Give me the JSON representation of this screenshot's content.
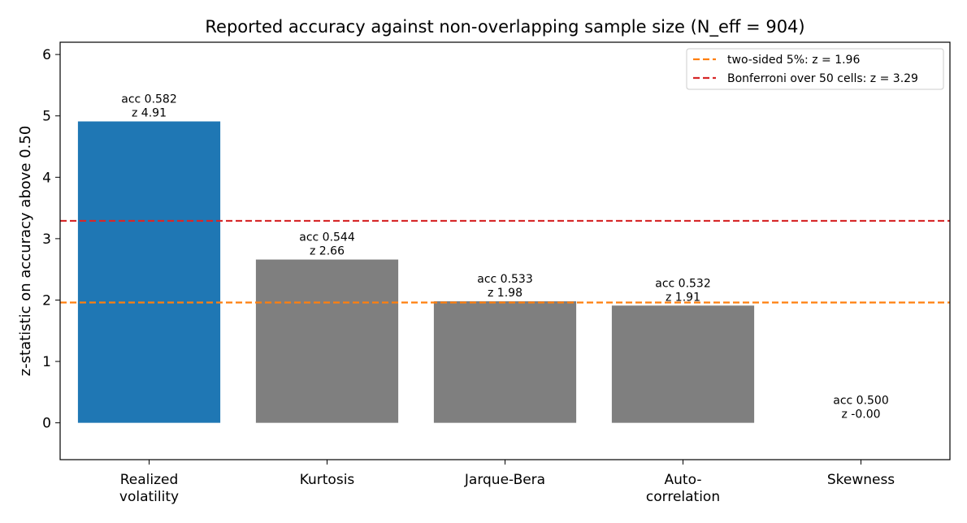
{
  "chart_data": {
    "type": "bar",
    "title": "Reported accuracy against non-overlapping sample size (N_eff = 904)",
    "xlabel": "",
    "ylabel": "z-statistic on accuracy above 0.50",
    "ylim": [
      -0.6,
      6.2
    ],
    "yticks": [
      0,
      1,
      2,
      3,
      4,
      5,
      6
    ],
    "categories": [
      [
        "Realized",
        "volatility"
      ],
      [
        "Kurtosis"
      ],
      [
        "Jarque-Bera"
      ],
      [
        "Auto-",
        "correlation"
      ],
      [
        "Skewness"
      ]
    ],
    "values": [
      4.91,
      2.66,
      1.98,
      1.91,
      0.0
    ],
    "bar_colors": [
      "#1f77b4",
      "#7f7f7f",
      "#7f7f7f",
      "#7f7f7f",
      "#7f7f7f"
    ],
    "data_labels": [
      [
        "acc 0.582",
        "z 4.91"
      ],
      [
        "acc 0.544",
        "z 2.66"
      ],
      [
        "acc 0.533",
        "z 1.98"
      ],
      [
        "acc 0.532",
        "z 1.91"
      ],
      [
        "acc 0.500",
        "z -0.00"
      ]
    ],
    "reference_lines": [
      {
        "label": "two-sided 5%: z = 1.96",
        "value": 1.96,
        "color": "#ff7f0e",
        "style": "dashed"
      },
      {
        "label": "Bonferroni over 50 cells: z = 3.29",
        "value": 3.29,
        "color": "#d62728",
        "style": "dashed"
      }
    ],
    "legend_position": "top-right",
    "grid": false
  }
}
